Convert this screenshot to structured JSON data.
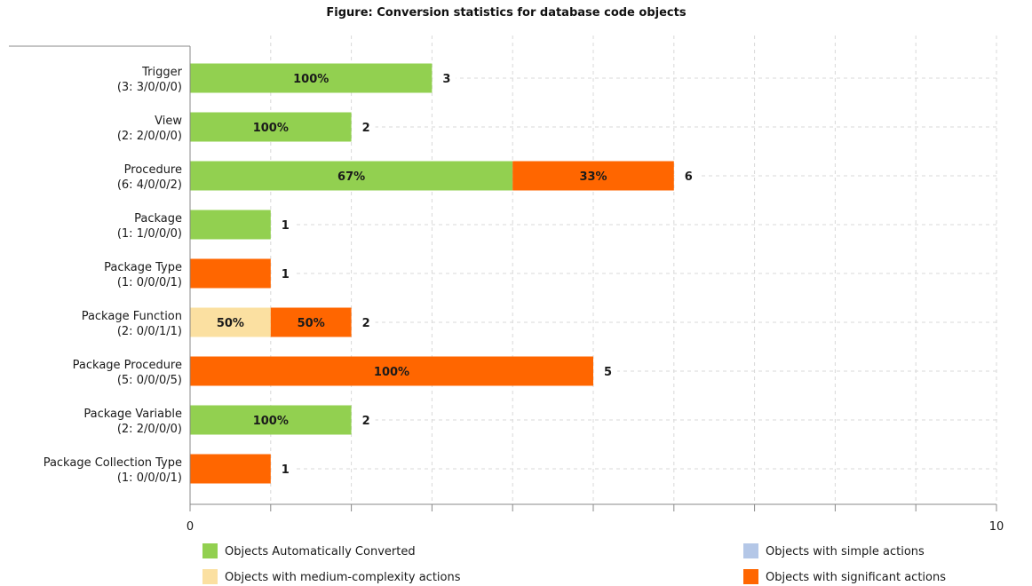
{
  "chart_data": {
    "type": "bar",
    "orientation": "horizontal",
    "stacked": true,
    "title": "Figure: Conversion statistics for database code objects",
    "categories": [
      [
        "Trigger",
        "(3: 3/0/0/0)"
      ],
      [
        "View",
        "(2: 2/0/0/0)"
      ],
      [
        "Procedure",
        "(6: 4/0/0/2)"
      ],
      [
        "Package",
        "(1: 1/0/0/0)"
      ],
      [
        "Package Type",
        "(1: 0/0/0/1)"
      ],
      [
        "Package Function",
        "(2: 0/0/1/1)"
      ],
      [
        "Package Procedure",
        "(5: 0/0/0/5)"
      ],
      [
        "Package Variable",
        "(2: 2/0/0/0)"
      ],
      [
        "Package Collection Type",
        "(1: 0/0/0/1)"
      ]
    ],
    "totals": [
      3,
      2,
      6,
      1,
      1,
      2,
      5,
      2,
      1
    ],
    "series": [
      {
        "name": "Objects Automatically Converted",
        "color": "#92d050",
        "values": [
          3,
          2,
          4,
          1,
          0,
          0,
          0,
          2,
          0
        ],
        "labels": [
          "100%",
          "100%",
          "67%",
          "",
          "",
          "",
          "",
          "100%",
          ""
        ]
      },
      {
        "name": "Objects with simple actions",
        "color": "#b4c7e7",
        "values": [
          0,
          0,
          0,
          0,
          0,
          0,
          0,
          0,
          0
        ],
        "labels": [
          "",
          "",
          "",
          "",
          "",
          "",
          "",
          "",
          ""
        ]
      },
      {
        "name": "Objects with medium-complexity actions",
        "color": "#fbe0a1",
        "values": [
          0,
          0,
          0,
          0,
          0,
          1,
          0,
          0,
          0
        ],
        "labels": [
          "",
          "",
          "",
          "",
          "",
          "50%",
          "",
          "",
          ""
        ]
      },
      {
        "name": "Objects with significant actions",
        "color": "#ff6600",
        "values": [
          0,
          0,
          2,
          0,
          1,
          1,
          5,
          0,
          1
        ],
        "labels": [
          "",
          "",
          "33%",
          "",
          "",
          "50%",
          "100%",
          "",
          ""
        ]
      }
    ],
    "xlim": [
      0,
      10
    ],
    "xtick_labels": [
      "0",
      "10"
    ],
    "grid": true,
    "legend": "bottom"
  }
}
